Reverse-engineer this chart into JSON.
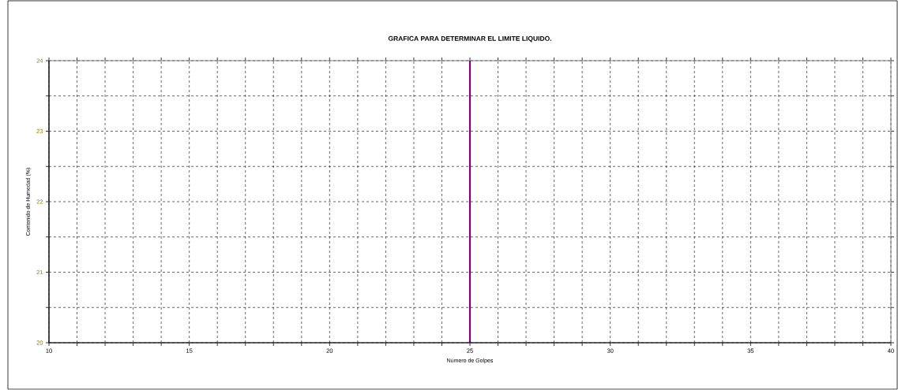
{
  "chart_data": {
    "type": "line",
    "title": "GRAFICA PARA DETERMINAR EL LIMITE LIQUIDO.",
    "xlabel": "Número de Golpes",
    "ylabel": "Contenido de Humedad (%)",
    "xlim": [
      10,
      40
    ],
    "xticks": [
      10,
      {
        "value": 11,
        "label": null
      },
      {
        "value": 12,
        "label": null
      },
      {
        "value": 13,
        "label": null
      },
      {
        "value": 14,
        "label": null
      },
      15,
      {
        "value": 16,
        "label": null
      },
      {
        "value": 17,
        "label": null
      },
      {
        "value": 18,
        "label": null
      },
      {
        "value": 19,
        "label": null
      },
      20,
      {
        "value": 21,
        "label": null
      },
      {
        "value": 22,
        "label": null
      },
      {
        "value": 23,
        "label": null
      },
      {
        "value": 24,
        "label": null
      },
      25,
      {
        "value": 26,
        "label": null
      },
      {
        "value": 27,
        "label": null
      },
      {
        "value": 28,
        "label": null
      },
      {
        "value": 29,
        "label": null
      },
      30,
      {
        "value": 31,
        "label": null
      },
      {
        "value": 32,
        "label": null
      },
      {
        "value": 33,
        "label": null
      },
      {
        "value": 34,
        "label": null
      },
      35,
      {
        "value": 36,
        "label": null
      },
      {
        "value": 37,
        "label": null
      },
      {
        "value": 38,
        "label": null
      },
      {
        "value": 39,
        "label": null
      },
      40
    ],
    "ylim": [
      20,
      24
    ],
    "yticks": [
      20,
      {
        "value": 20.5,
        "label": null
      },
      21,
      {
        "value": 21.5,
        "label": null
      },
      22,
      {
        "value": 22.5,
        "label": null
      },
      23,
      {
        "value": 23.5,
        "label": null
      },
      24
    ],
    "grid": true,
    "ref_lines": [
      {
        "axis": "x",
        "value": 25,
        "color": "#800080"
      }
    ]
  }
}
